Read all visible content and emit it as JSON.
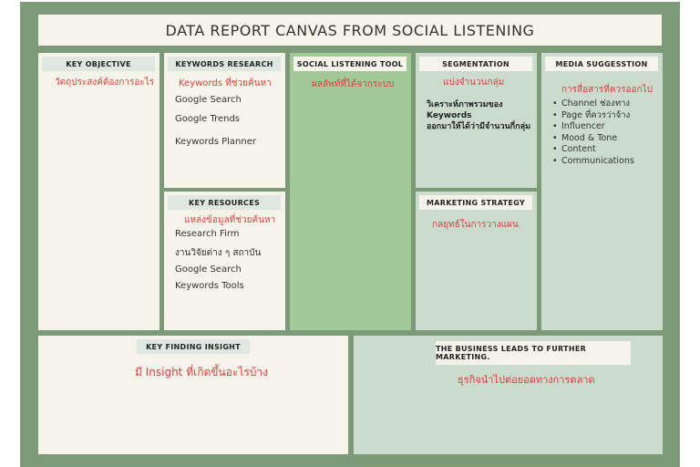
{
  "title": "DATA REPORT CANVAS FROM SOCIAL LISTENING",
  "key_objective": {
    "header": "KEY OBJECTIVE",
    "subtitle": "วัตถุประสงค์ต้องการอะไร"
  },
  "keywords_research": {
    "header": "KEYWORDS RESEARCH",
    "subtitle": "Keywords ที่ช่วยค้นหา",
    "items": [
      "Google Search",
      "Google Trends",
      "Keywords Planner"
    ]
  },
  "key_resources": {
    "header": "KEY RESOURCES",
    "subtitle": "แหล่งข้อมูลที่ช่วยค้นหา",
    "items": [
      "Research Firm",
      "งานวิจัยต่าง ๆ สถาบัน",
      "Google Search",
      "Keywords Tools"
    ]
  },
  "social_listening_tool": {
    "header": "SOCIAL LISTENING TOOL",
    "subtitle": "ผลลัพท์ที่ได้จากระบบ"
  },
  "segmentation": {
    "header": "SEGMENTATION",
    "subtitle": "แบ่งจำนวนกลุ่ม",
    "body_lines": [
      "วิเคราะห์ภาพรวมของ",
      "Keywords",
      "ออกมาให้ได้ว่ามีจำนวนกี่กลุ่ม"
    ]
  },
  "marketing_strategy": {
    "header": "MARKETING STRATEGY",
    "subtitle": "กลยุทธ์ในการวางแผน"
  },
  "media_suggestion": {
    "header": "MEDIA SUGGESSTION",
    "subtitle": "การสื่อสารที่ควรออกไป",
    "items": [
      "Channel ช่องทาง",
      "Page ที่ควรว่าจ้าง",
      "Influencer",
      "Mood & Tone",
      "Content",
      "Communications"
    ]
  },
  "key_finding_insight": {
    "header": "KEY FINDING INSIGHT",
    "subtitle": "มี Insight ที่เกิดขึ้นอะไรบ้าง"
  },
  "business_leads": {
    "header": "THE BUSINESS LEADS TO FURTHER MARKETING.",
    "subtitle": "ธุรกิจนำไปต่อยอดทางการตลาด"
  }
}
